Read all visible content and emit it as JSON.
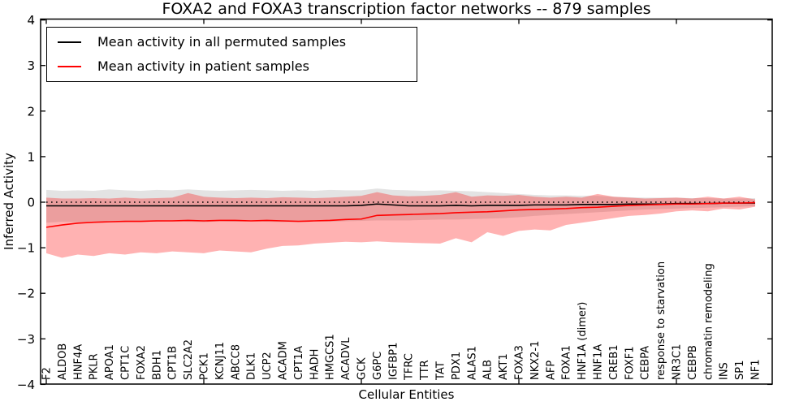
{
  "legend": {
    "items": [
      {
        "label": "Mean activity in all permuted samples",
        "color": "#000000"
      },
      {
        "label": "Mean activity in patient samples",
        "color": "#ff0000"
      }
    ],
    "position": "upper left"
  },
  "chart_data": {
    "type": "line",
    "title": "FOXA2 and FOXA3 transcription factor networks -- 879 samples",
    "xlabel": "Cellular Entities",
    "ylabel": "Inferred Activity",
    "ylim": [
      -4,
      4
    ],
    "yticks": [
      -4,
      -3,
      -2,
      -1,
      0,
      1,
      2,
      3,
      4
    ],
    "xtick_category_indices": [
      0,
      10,
      20,
      30,
      40
    ],
    "grid": false,
    "dotted_reference_line_y": 0,
    "categories": [
      "F2",
      "ALDOB",
      "HNF4A",
      "PKLR",
      "APOA1",
      "CPT1C",
      "FOXA2",
      "BDH1",
      "CPT1B",
      "SLC2A2",
      "PCK1",
      "KCNJ11",
      "ABCC8",
      "DLK1",
      "UCP2",
      "ACADM",
      "CPT1A",
      "HADH",
      "HMGCS1",
      "ACADVL",
      "GCK",
      "G6PC",
      "IGFBP1",
      "TFRC",
      "TTR",
      "TAT",
      "PDX1",
      "ALAS1",
      "ALB",
      "AKT1",
      "FOXA3",
      "NKX2-1",
      "AFP",
      "FOXA1",
      "HNF1A (dimer)",
      "HNF1A",
      "CREB1",
      "FOXF1",
      "CEBPA",
      "response to starvation",
      "NR3C1",
      "CEBPB",
      "chromatin remodeling",
      "INS",
      "SP1",
      "NF1"
    ],
    "series": [
      {
        "name": "Mean activity in all permuted samples",
        "color": "#000000",
        "band_fill": "#000000",
        "band_opacity": 0.11,
        "mean": [
          -0.08,
          -0.08,
          -0.08,
          -0.08,
          -0.08,
          -0.08,
          -0.08,
          -0.08,
          -0.08,
          -0.08,
          -0.08,
          -0.08,
          -0.08,
          -0.08,
          -0.08,
          -0.08,
          -0.08,
          -0.08,
          -0.08,
          -0.08,
          -0.07,
          -0.04,
          -0.06,
          -0.08,
          -0.08,
          -0.08,
          -0.07,
          -0.08,
          -0.07,
          -0.07,
          -0.07,
          -0.06,
          -0.06,
          -0.06,
          -0.05,
          -0.05,
          -0.05,
          -0.04,
          -0.04,
          -0.04,
          -0.03,
          -0.03,
          -0.03,
          -0.02,
          -0.02,
          -0.02
        ],
        "band_hi": [
          0.27,
          0.25,
          0.26,
          0.25,
          0.28,
          0.26,
          0.25,
          0.27,
          0.26,
          0.28,
          0.26,
          0.25,
          0.26,
          0.27,
          0.26,
          0.25,
          0.26,
          0.25,
          0.27,
          0.26,
          0.26,
          0.3,
          0.27,
          0.26,
          0.25,
          0.26,
          0.25,
          0.24,
          0.22,
          0.2,
          0.18,
          0.16,
          0.15,
          0.15,
          0.14,
          0.14,
          0.12,
          0.11,
          0.1,
          0.1,
          0.1,
          0.09,
          0.09,
          0.08,
          0.08,
          0.09
        ],
        "band_lo": [
          -0.45,
          -0.43,
          -0.44,
          -0.42,
          -0.43,
          -0.44,
          -0.42,
          -0.43,
          -0.42,
          -0.43,
          -0.44,
          -0.42,
          -0.43,
          -0.42,
          -0.43,
          -0.44,
          -0.43,
          -0.42,
          -0.43,
          -0.42,
          -0.41,
          -0.4,
          -0.4,
          -0.4,
          -0.39,
          -0.38,
          -0.38,
          -0.37,
          -0.36,
          -0.35,
          -0.33,
          -0.3,
          -0.28,
          -0.26,
          -0.24,
          -0.22,
          -0.2,
          -0.18,
          -0.16,
          -0.15,
          -0.14,
          -0.13,
          -0.12,
          -0.11,
          -0.1,
          -0.09
        ]
      },
      {
        "name": "Mean activity in patient samples",
        "color": "#ff0000",
        "band_fill": "#ff0000",
        "band_opacity": 0.3,
        "mean": [
          -0.55,
          -0.5,
          -0.46,
          -0.44,
          -0.43,
          -0.42,
          -0.42,
          -0.41,
          -0.41,
          -0.4,
          -0.41,
          -0.4,
          -0.4,
          -0.41,
          -0.4,
          -0.41,
          -0.42,
          -0.41,
          -0.4,
          -0.38,
          -0.37,
          -0.29,
          -0.28,
          -0.27,
          -0.26,
          -0.25,
          -0.23,
          -0.22,
          -0.21,
          -0.19,
          -0.17,
          -0.16,
          -0.15,
          -0.14,
          -0.12,
          -0.11,
          -0.09,
          -0.07,
          -0.06,
          -0.05,
          -0.04,
          -0.04,
          -0.03,
          -0.02,
          -0.02,
          -0.01
        ],
        "band_hi": [
          0.1,
          0.08,
          0.08,
          0.09,
          0.08,
          0.1,
          0.08,
          0.09,
          0.1,
          0.2,
          0.12,
          0.1,
          0.09,
          0.1,
          0.09,
          0.11,
          0.1,
          0.09,
          0.1,
          0.12,
          0.14,
          0.22,
          0.15,
          0.13,
          0.14,
          0.16,
          0.22,
          0.12,
          0.15,
          0.14,
          0.16,
          0.12,
          0.1,
          0.12,
          0.1,
          0.18,
          0.12,
          0.1,
          0.08,
          0.09,
          0.1,
          0.08,
          0.12,
          0.08,
          0.12,
          0.06
        ],
        "band_lo": [
          -1.12,
          -1.22,
          -1.15,
          -1.18,
          -1.12,
          -1.15,
          -1.1,
          -1.12,
          -1.08,
          -1.1,
          -1.12,
          -1.06,
          -1.08,
          -1.1,
          -1.02,
          -0.96,
          -0.95,
          -0.91,
          -0.89,
          -0.87,
          -0.88,
          -0.86,
          -0.88,
          -0.89,
          -0.9,
          -0.91,
          -0.79,
          -0.88,
          -0.66,
          -0.74,
          -0.63,
          -0.6,
          -0.62,
          -0.5,
          -0.45,
          -0.4,
          -0.35,
          -0.3,
          -0.28,
          -0.25,
          -0.2,
          -0.18,
          -0.2,
          -0.14,
          -0.16,
          -0.1
        ]
      }
    ]
  }
}
